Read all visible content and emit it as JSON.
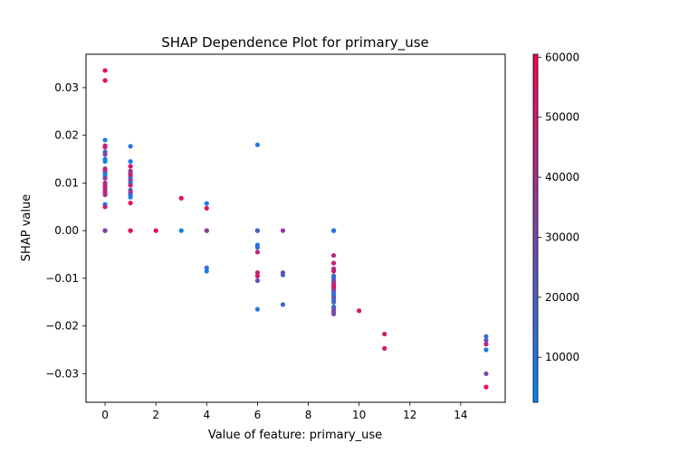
{
  "chart_data": {
    "type": "scatter",
    "title": "SHAP Dependence Plot for primary_use",
    "xlabel": "Value of feature: primary_use",
    "ylabel": "SHAP value",
    "xlim": [
      -0.75,
      15.75
    ],
    "ylim": [
      -0.036,
      0.037
    ],
    "xticks": [
      0,
      2,
      4,
      6,
      8,
      10,
      12,
      14
    ],
    "yticks": [
      -0.03,
      -0.02,
      -0.01,
      0.0,
      0.01,
      0.02,
      0.03
    ],
    "ytick_labels": [
      "−0.03",
      "−0.02",
      "−0.01",
      "0.00",
      "0.01",
      "0.02",
      "0.03"
    ],
    "grid": false,
    "colorbar": {
      "label": "",
      "min": 2500,
      "max": 60500,
      "ticks": [
        10000,
        20000,
        30000,
        40000,
        50000,
        60000
      ],
      "colors": [
        "#008afb",
        "#ff0051"
      ]
    },
    "points": [
      [
        0,
        0.0336,
        55000
      ],
      [
        0,
        0.0315,
        55000
      ],
      [
        0,
        0.019,
        8000
      ],
      [
        0,
        0.0178,
        50000
      ],
      [
        0,
        0.0175,
        45000
      ],
      [
        0,
        0.0165,
        20000
      ],
      [
        0,
        0.016,
        30000
      ],
      [
        0,
        0.015,
        10000
      ],
      [
        0,
        0.0145,
        5000
      ],
      [
        0,
        0.013,
        40000
      ],
      [
        0,
        0.0125,
        50000
      ],
      [
        0,
        0.012,
        15000
      ],
      [
        0,
        0.0115,
        6000
      ],
      [
        0,
        0.011,
        35000
      ],
      [
        0,
        0.01,
        45000
      ],
      [
        0,
        0.0095,
        40000
      ],
      [
        0,
        0.009,
        52000
      ],
      [
        0,
        0.0085,
        38000
      ],
      [
        0,
        0.008,
        48000
      ],
      [
        0,
        0.0075,
        42000
      ],
      [
        0,
        0.0055,
        5000
      ],
      [
        0,
        0.005,
        47000
      ],
      [
        0,
        0.0,
        8000
      ],
      [
        0,
        0.0,
        55000
      ],
      [
        0,
        0.0,
        30000
      ],
      [
        1,
        0.0177,
        12000
      ],
      [
        1,
        0.0145,
        8000
      ],
      [
        1,
        0.0135,
        50000
      ],
      [
        1,
        0.0125,
        45000
      ],
      [
        1,
        0.012,
        35000
      ],
      [
        1,
        0.0115,
        52000
      ],
      [
        1,
        0.011,
        20000
      ],
      [
        1,
        0.0105,
        40000
      ],
      [
        1,
        0.01,
        10000
      ],
      [
        1,
        0.0095,
        48000
      ],
      [
        1,
        0.0085,
        25000
      ],
      [
        1,
        0.008,
        42000
      ],
      [
        1,
        0.0075,
        15000
      ],
      [
        1,
        0.007,
        9000
      ],
      [
        1,
        0.0058,
        55000
      ],
      [
        1,
        0.0,
        12000
      ],
      [
        1,
        0.0,
        55000
      ],
      [
        2,
        0.0,
        56000
      ],
      [
        3,
        0.0068,
        55000
      ],
      [
        3,
        0.0,
        8000
      ],
      [
        4,
        0.0057,
        10000
      ],
      [
        4,
        0.0047,
        52000
      ],
      [
        4,
        0.0,
        20000
      ],
      [
        4,
        0.0,
        35000
      ],
      [
        4,
        -0.0078,
        15000
      ],
      [
        4,
        -0.0085,
        8000
      ],
      [
        6,
        0.018,
        9000
      ],
      [
        6,
        0.0,
        10000
      ],
      [
        6,
        0.0,
        20000
      ],
      [
        6,
        -0.003,
        8000
      ],
      [
        6,
        -0.0035,
        15000
      ],
      [
        6,
        -0.0045,
        45000
      ],
      [
        6,
        -0.0088,
        48000
      ],
      [
        6,
        -0.0095,
        52000
      ],
      [
        6,
        -0.0105,
        25000
      ],
      [
        6,
        -0.0165,
        10000
      ],
      [
        7,
        0.0,
        35000
      ],
      [
        7,
        -0.0088,
        30000
      ],
      [
        7,
        -0.0093,
        20000
      ],
      [
        7,
        -0.0155,
        15000
      ],
      [
        9,
        0.0,
        8000
      ],
      [
        9,
        0.0,
        12000
      ],
      [
        9,
        -0.0052,
        45000
      ],
      [
        9,
        -0.0068,
        48000
      ],
      [
        9,
        -0.008,
        42000
      ],
      [
        9,
        -0.0085,
        50000
      ],
      [
        9,
        -0.0095,
        20000
      ],
      [
        9,
        -0.01,
        15000
      ],
      [
        9,
        -0.0105,
        25000
      ],
      [
        9,
        -0.011,
        40000
      ],
      [
        9,
        -0.0115,
        48000
      ],
      [
        9,
        -0.012,
        52000
      ],
      [
        9,
        -0.0125,
        35000
      ],
      [
        9,
        -0.013,
        18000
      ],
      [
        9,
        -0.0135,
        10000
      ],
      [
        9,
        -0.014,
        30000
      ],
      [
        9,
        -0.0145,
        12000
      ],
      [
        9,
        -0.015,
        20000
      ],
      [
        9,
        -0.016,
        15000
      ],
      [
        9,
        -0.0165,
        25000
      ],
      [
        9,
        -0.017,
        30000
      ],
      [
        9,
        -0.0175,
        28000
      ],
      [
        10,
        -0.0168,
        52000
      ],
      [
        11,
        -0.0217,
        48000
      ],
      [
        11,
        -0.0247,
        50000
      ],
      [
        15,
        -0.0222,
        15000
      ],
      [
        15,
        -0.023,
        25000
      ],
      [
        15,
        -0.0238,
        45000
      ],
      [
        15,
        -0.025,
        10000
      ],
      [
        15,
        -0.03,
        30000
      ],
      [
        15,
        -0.0328,
        55000
      ]
    ]
  }
}
